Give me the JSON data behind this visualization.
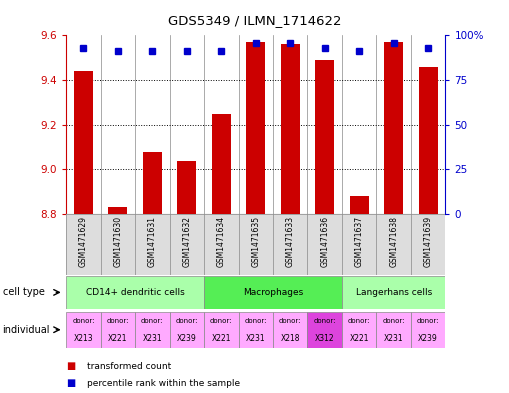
{
  "title": "GDS5349 / ILMN_1714622",
  "samples": [
    "GSM1471629",
    "GSM1471630",
    "GSM1471631",
    "GSM1471632",
    "GSM1471634",
    "GSM1471635",
    "GSM1471633",
    "GSM1471636",
    "GSM1471637",
    "GSM1471638",
    "GSM1471639"
  ],
  "transformed_counts": [
    9.44,
    8.83,
    9.08,
    9.04,
    9.25,
    9.57,
    9.56,
    9.49,
    8.88,
    9.57,
    9.46
  ],
  "percentile_ranks": [
    93,
    91,
    91,
    91,
    91,
    96,
    96,
    93,
    91,
    96,
    93
  ],
  "y_min": 8.8,
  "y_max": 9.6,
  "y_ticks": [
    8.8,
    9.0,
    9.2,
    9.4,
    9.6
  ],
  "right_y_ticks": [
    0,
    25,
    50,
    75,
    100
  ],
  "bar_color": "#cc0000",
  "dot_color": "#0000cc",
  "cell_types": [
    {
      "label": "CD14+ dendritic cells",
      "start": 0,
      "end": 4,
      "color": "#aaffaa"
    },
    {
      "label": "Macrophages",
      "start": 4,
      "end": 8,
      "color": "#55ee55"
    },
    {
      "label": "Langerhans cells",
      "start": 8,
      "end": 11,
      "color": "#aaffaa"
    }
  ],
  "individuals": [
    {
      "donor": "X213",
      "color": "#ffaaff"
    },
    {
      "donor": "X221",
      "color": "#ffaaff"
    },
    {
      "donor": "X231",
      "color": "#ffaaff"
    },
    {
      "donor": "X239",
      "color": "#ffaaff"
    },
    {
      "donor": "X221",
      "color": "#ffaaff"
    },
    {
      "donor": "X231",
      "color": "#ffaaff"
    },
    {
      "donor": "X218",
      "color": "#ffaaff"
    },
    {
      "donor": "X312",
      "color": "#dd44dd"
    },
    {
      "donor": "X221",
      "color": "#ffaaff"
    },
    {
      "donor": "X231",
      "color": "#ffaaff"
    },
    {
      "donor": "X239",
      "color": "#ffaaff"
    }
  ],
  "legend_red": "transformed count",
  "legend_blue": "percentile rank within the sample",
  "label_cell_type": "cell type",
  "label_individual": "individual",
  "tick_label_color_left": "#cc0000",
  "tick_label_color_right": "#0000cc",
  "sample_bg_color": "#dddddd",
  "border_color": "#888888"
}
